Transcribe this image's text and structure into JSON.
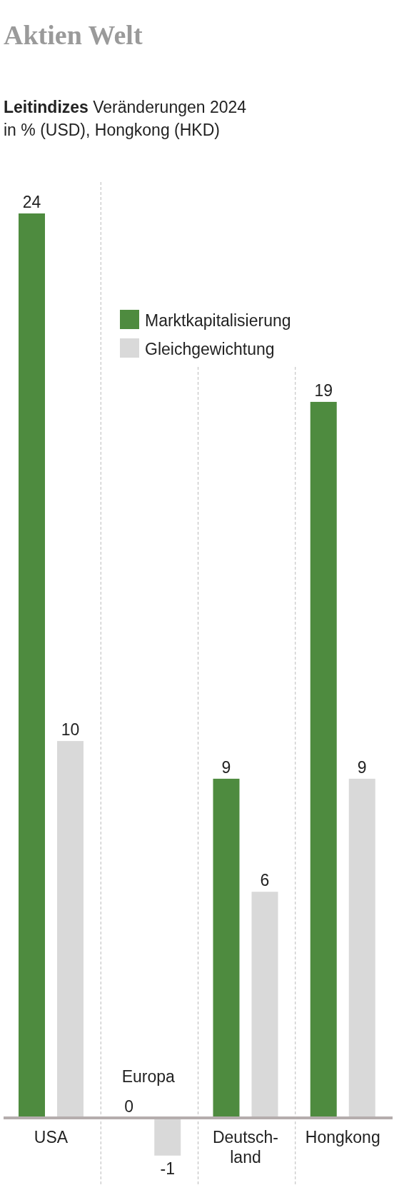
{
  "chart_data": {
    "type": "bar",
    "title": "Aktien Welt",
    "subtitle": "Leitindizes Veränderungen 2024 in % (USD), Hongkong (HKD)",
    "categories": [
      "USA",
      "Europa",
      "Deutsch-land",
      "Hongkong"
    ],
    "series": [
      {
        "name": "Marktkapitalisierung",
        "color": "#4e8b3f",
        "values": [
          24,
          0,
          9,
          19
        ]
      },
      {
        "name": "Gleichgewichtung",
        "color": "#d9d9d9",
        "values": [
          10,
          -1,
          6,
          9
        ]
      }
    ],
    "data_labels": true,
    "legend": "top",
    "grid": "x"
  }
}
